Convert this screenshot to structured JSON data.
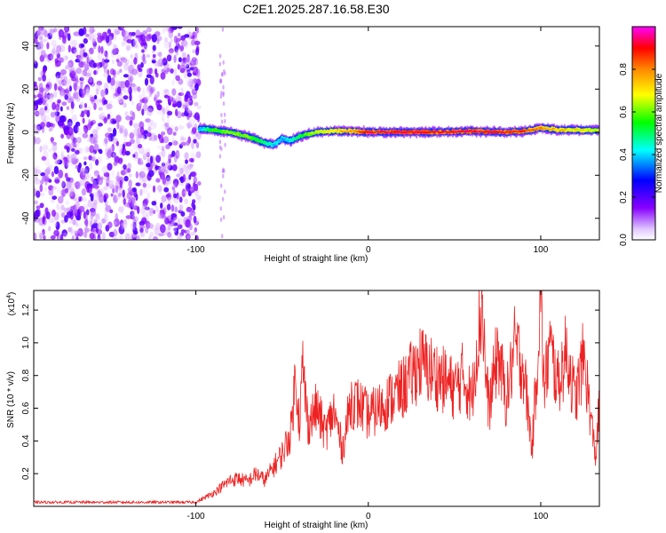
{
  "chart_data": [
    {
      "type": "heatmap",
      "title": "C2E1.2025.287.16.58.E30",
      "xlabel": "Height of straight line (km)",
      "ylabel": "Frequency (Hz)",
      "xlim": [
        -194,
        134
      ],
      "ylim": [
        -50,
        49
      ],
      "x_ticks": [
        -100,
        0,
        100
      ],
      "y_ticks": [
        -40,
        -20,
        0,
        20,
        40
      ],
      "colorbar": {
        "label": "Normalized spectral amplitude",
        "range": [
          0,
          1
        ],
        "ticks": [
          0.0,
          0.2,
          0.4,
          0.6,
          0.8
        ],
        "tick_labels": [
          "0.0",
          "0.2",
          "0.4",
          "0.6",
          "0.8"
        ],
        "colors": [
          "#ffffff",
          "#8800ff",
          "#0000ff",
          "#00ffff",
          "#00ff00",
          "#ffff00",
          "#ff8800",
          "#ff0000",
          "#ff00ff"
        ]
      },
      "noise_region": {
        "x_range": [
          -194,
          -98
        ],
        "amplitude": [
          0.0,
          0.3
        ]
      },
      "trace": {
        "x": [
          -98,
          -90,
          -80,
          -70,
          -60,
          -55,
          -50,
          -45,
          -40,
          -35,
          -30,
          -20,
          -10,
          0,
          20,
          40,
          60,
          80,
          90,
          95,
          100,
          110,
          120,
          134
        ],
        "freq": [
          1.5,
          1.0,
          0.0,
          -2.0,
          -5.0,
          -6.0,
          -3.0,
          -4.0,
          -2.0,
          -1.0,
          0.0,
          0.5,
          0.5,
          0.0,
          0.0,
          0.0,
          0.5,
          0.0,
          0.5,
          1.0,
          2.0,
          1.0,
          1.0,
          1.0
        ],
        "amplitude": [
          0.35,
          0.55,
          0.6,
          0.6,
          0.45,
          0.4,
          0.35,
          0.4,
          0.5,
          0.6,
          0.65,
          0.7,
          0.8,
          0.95,
          1.0,
          0.95,
          0.98,
          0.95,
          0.9,
          0.85,
          0.8,
          0.75,
          0.7,
          0.65
        ]
      }
    },
    {
      "type": "line",
      "xlabel": "Height of straight line (km)",
      "ylabel": "SNR (10 * v/v)",
      "y_multiplier": "(x10",
      "y_multiplier_exp": "4",
      "y_multiplier_close": ")",
      "xlim": [
        -194,
        134
      ],
      "ylim": [
        0,
        13200
      ],
      "x_ticks": [
        -100,
        0,
        100
      ],
      "y_ticks": [
        2000,
        4000,
        6000,
        8000,
        10000,
        12000
      ],
      "y_tick_labels": [
        "0.2",
        "0.4",
        "0.6",
        "0.8",
        "1.0",
        "1.2"
      ],
      "color": "#ee2222",
      "series": [
        {
          "name": "SNR",
          "x": [
            -194,
            -100,
            -90,
            -85,
            -80,
            -75,
            -70,
            -65,
            -60,
            -55,
            -50,
            -45,
            -42,
            -40,
            -38,
            -35,
            -30,
            -25,
            -20,
            -15,
            -10,
            -5,
            0,
            10,
            20,
            30,
            40,
            50,
            55,
            60,
            62,
            65,
            66,
            68,
            70,
            75,
            80,
            85,
            90,
            95,
            98,
            100,
            102,
            105,
            110,
            115,
            120,
            125,
            130,
            132,
            134
          ],
          "y": [
            250,
            250,
            800,
            1200,
            1600,
            1700,
            1500,
            2000,
            1600,
            2400,
            3200,
            4500,
            8200,
            5200,
            8500,
            5000,
            6000,
            4500,
            5800,
            3500,
            6500,
            6200,
            5500,
            6300,
            7200,
            8800,
            8000,
            7200,
            8000,
            6500,
            9000,
            11500,
            13000,
            8000,
            6000,
            9500,
            6500,
            9800,
            8500,
            3500,
            9000,
            13200,
            7000,
            9800,
            7500,
            9500,
            6500,
            9200,
            4500,
            3000,
            6500
          ]
        }
      ]
    }
  ]
}
